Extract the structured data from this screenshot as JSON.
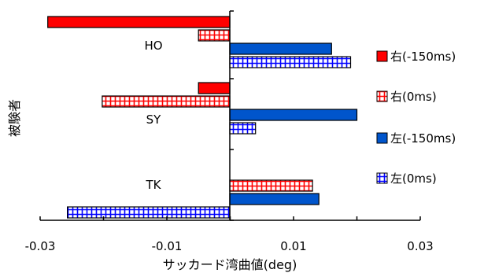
{
  "chart_data": {
    "type": "bar",
    "orientation": "horizontal",
    "ylabel": "被験者",
    "xlabel": "サッカード湾曲値(deg)",
    "xlim": [
      -0.03,
      0.03
    ],
    "xticks": [
      -0.03,
      -0.01,
      0.01,
      0.03
    ],
    "xtick_labels": [
      "-0.03",
      "-0.01",
      "0.01",
      "0.03"
    ],
    "categories": [
      "HO",
      "SY",
      "TK"
    ],
    "series": [
      {
        "name": "右(-150ms)",
        "color": "#ff0000",
        "pattern": "solid",
        "values": [
          -0.0288,
          -0.005,
          null
        ]
      },
      {
        "name": "右(0ms)",
        "color": "#ff0000",
        "pattern": "grid",
        "values": [
          -0.005,
          -0.0202,
          0.013
        ]
      },
      {
        "name": "左(-150ms)",
        "color": "#0055cc",
        "pattern": "solid",
        "values": [
          0.016,
          0.02,
          0.014
        ]
      },
      {
        "name": "左(0ms)",
        "color": "#0000ff",
        "pattern": "grid",
        "values": [
          0.019,
          0.004,
          -0.0257
        ]
      }
    ],
    "legend_position": "right",
    "grid": false
  }
}
